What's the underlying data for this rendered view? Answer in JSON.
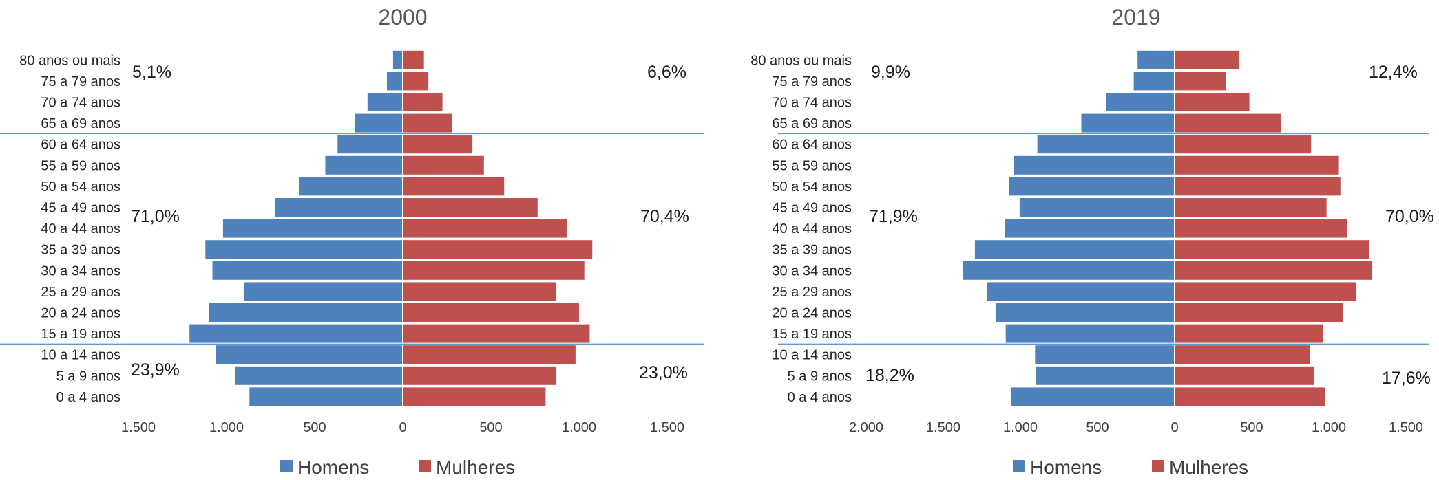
{
  "colors": {
    "homens": "#4f81bd",
    "mulheres": "#c0504d",
    "divider": "#5b9bd5"
  },
  "chart_data": [
    {
      "type": "bar",
      "orientation": "horizontal-population-pyramid",
      "title": "2000",
      "categories": [
        "0 a 4 anos",
        "5 a 9 anos",
        "10 a 14 anos",
        "15 a 19 anos",
        "20 a 24 anos",
        "25 a 29 anos",
        "30 a 34 anos",
        "35 a 39 anos",
        "40 a 44 anos",
        "45 a 49 anos",
        "50 a 54 anos",
        "55 a 59 anos",
        "60 a 64 anos",
        "65 a 69 anos",
        "70 a 74 anos",
        "75 a 79 anos",
        "80 anos ou mais"
      ],
      "series": [
        {
          "name": "Homens",
          "values": [
            870,
            950,
            1060,
            1210,
            1100,
            900,
            1080,
            1120,
            1020,
            725,
            590,
            440,
            370,
            270,
            200,
            90,
            55
          ]
        },
        {
          "name": "Mulheres",
          "values": [
            810,
            870,
            980,
            1060,
            1000,
            870,
            1030,
            1075,
            930,
            765,
            575,
            460,
            395,
            280,
            225,
            145,
            120
          ]
        }
      ],
      "xlim": [
        -1500,
        1500
      ],
      "ticks": [
        -1500,
        -1000,
        -500,
        0,
        500,
        1000,
        1500
      ],
      "tick_labels": [
        "1.500",
        "1.000",
        "500",
        "0",
        "500",
        "1.000",
        "1.500"
      ],
      "group_lines_after_category_index": [
        2,
        12
      ],
      "annotations": {
        "top_left": "5,1%",
        "top_right": "6,6%",
        "mid_left": "71,0%",
        "mid_right": "70,4%",
        "bottom_left": "23,9%",
        "bottom_right": "23,0%"
      },
      "legend": {
        "position": "bottom",
        "items": [
          "Homens",
          "Mulheres"
        ]
      }
    },
    {
      "type": "bar",
      "orientation": "horizontal-population-pyramid",
      "title": "2019",
      "categories": [
        "0 a 4 anos",
        "5 a 9 anos",
        "10 a 14 anos",
        "15 a 19 anos",
        "20 a 24 anos",
        "25 a 29 anos",
        "30 a 34 anos",
        "35 a 39 anos",
        "40 a 44 anos",
        "45 a 49 anos",
        "50 a 54 anos",
        "55 a 59 anos",
        "60 a 64 anos",
        "65 a 69 anos",
        "70 a 74 anos",
        "75 a 79 anos",
        "80 anos ou mais"
      ],
      "series": [
        {
          "name": "Homens",
          "values": [
            1060,
            900,
            905,
            1095,
            1160,
            1215,
            1375,
            1295,
            1100,
            1005,
            1075,
            1040,
            890,
            605,
            445,
            265,
            240
          ]
        },
        {
          "name": "Mulheres",
          "values": [
            975,
            905,
            875,
            960,
            1090,
            1175,
            1280,
            1260,
            1120,
            985,
            1075,
            1065,
            885,
            690,
            485,
            335,
            420
          ]
        }
      ],
      "xlim": [
        -2000,
        1500
      ],
      "ticks": [
        -2000,
        -1500,
        -1000,
        -500,
        0,
        500,
        1000,
        1500
      ],
      "tick_labels": [
        "2.000",
        "1.500",
        "1.000",
        "500",
        "0",
        "500",
        "1.000",
        "1.500"
      ],
      "group_lines_after_category_index": [
        2,
        12
      ],
      "annotations": {
        "top_left": "9,9%",
        "top_right": "12,4%",
        "mid_left": "71,9%",
        "mid_right": "70,0%",
        "bottom_left": "18,2%",
        "bottom_right": "17,6%"
      },
      "legend": {
        "position": "bottom",
        "items": [
          "Homens",
          "Mulheres"
        ]
      }
    }
  ]
}
